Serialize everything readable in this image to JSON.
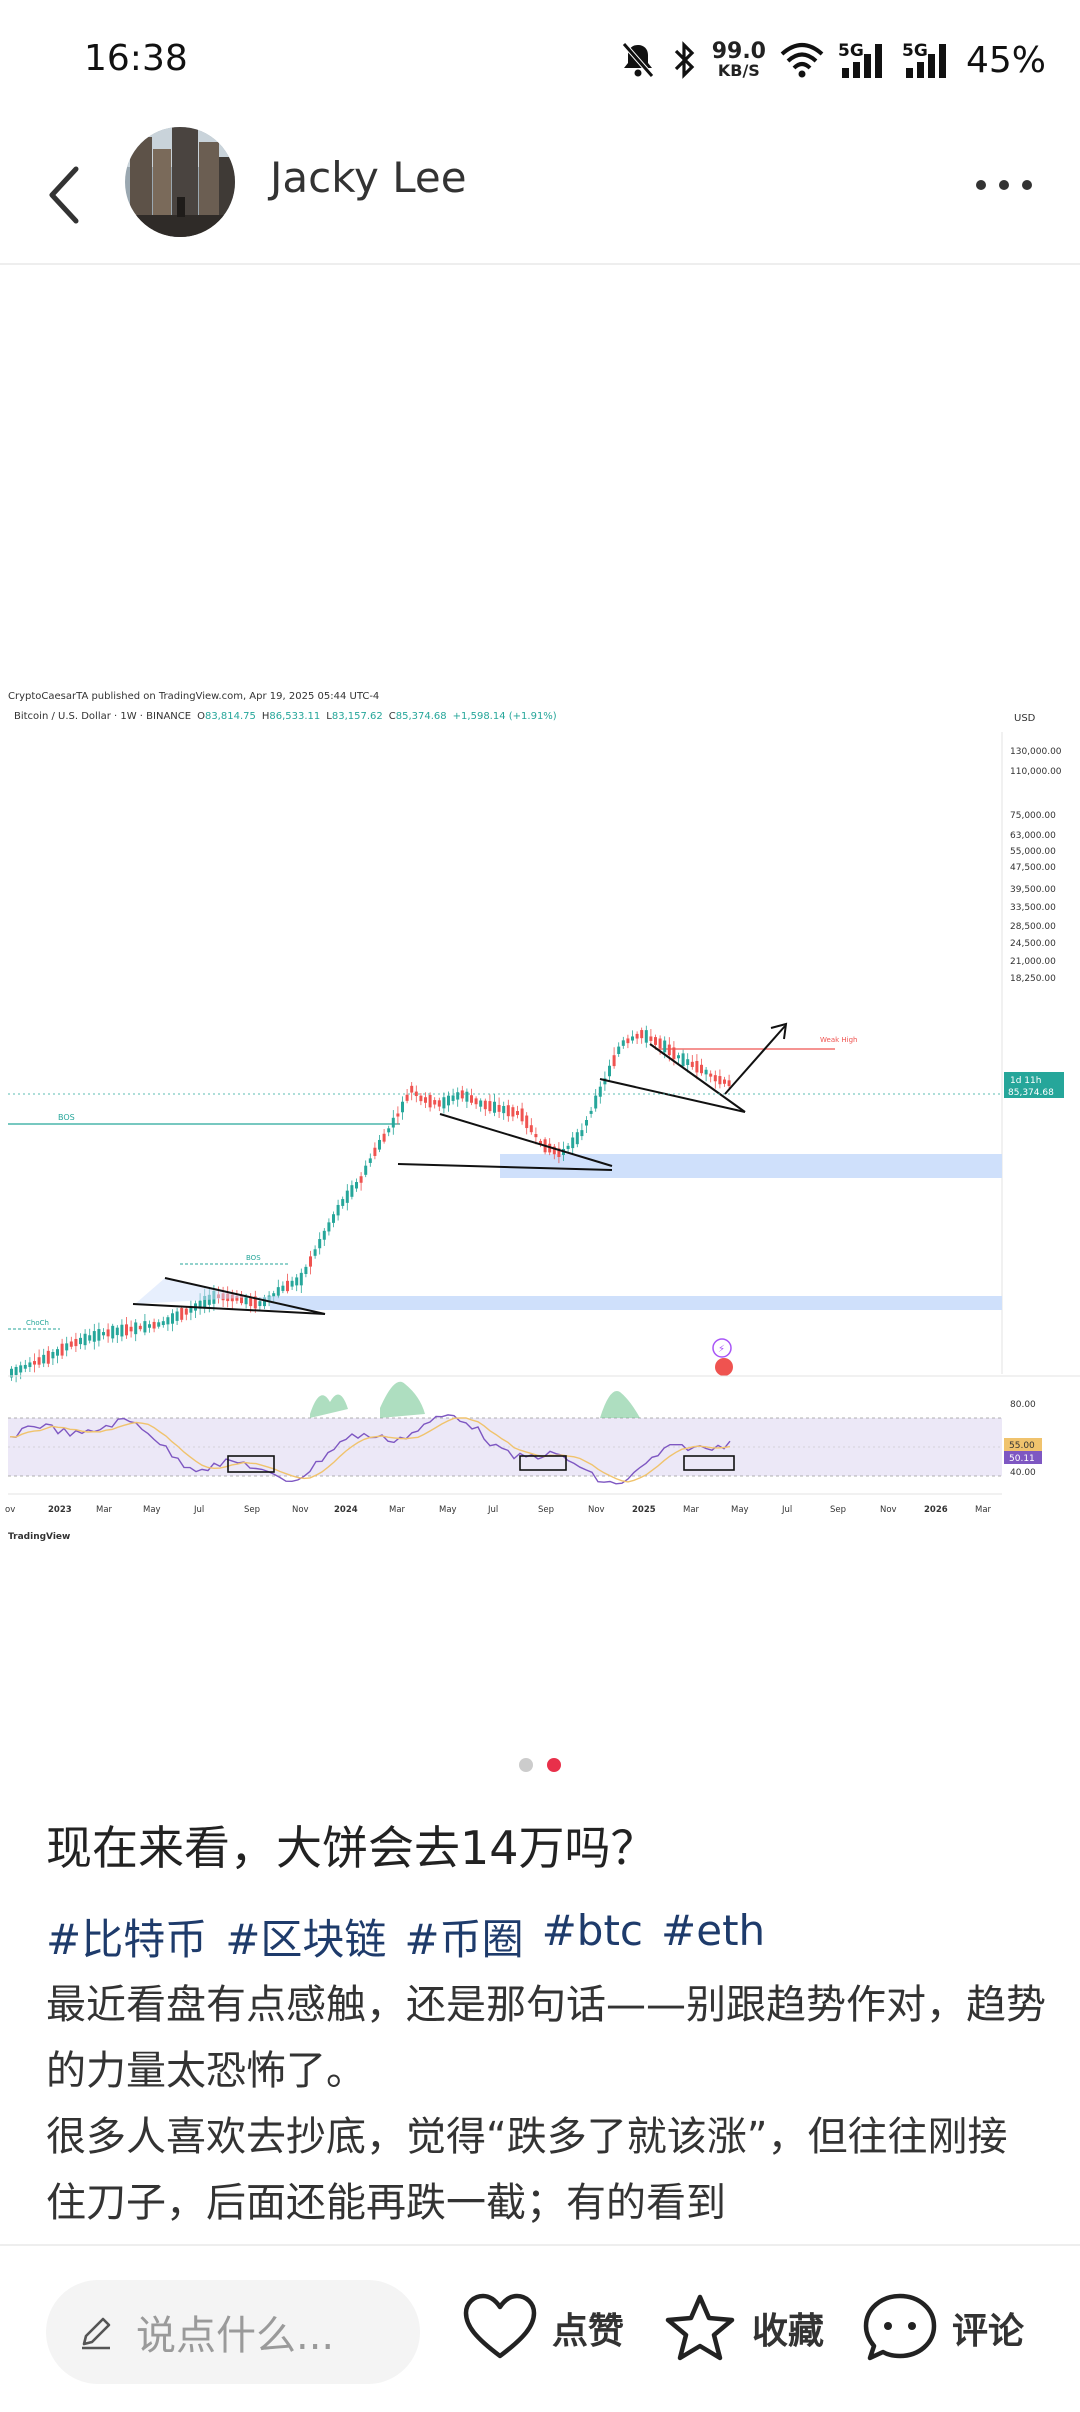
{
  "status_bar": {
    "time": "16:38",
    "net_speed_value": "99.0",
    "net_speed_unit": "KB/S",
    "signal1": "5G",
    "signal2": "5G",
    "battery": "45%"
  },
  "header": {
    "author": "Jacky Lee"
  },
  "chart": {
    "published": "CryptoCaesarTA published on TradingView.com, Apr 19, 2025 05:44 UTC-4",
    "symbol_prefix": "Bitcoin / U.S. Dollar · 1W · BINANCE",
    "ohlc_o_label": "O",
    "ohlc_o": "83,814.75",
    "ohlc_h_label": "H",
    "ohlc_h": "86,533.11",
    "ohlc_l_label": "L",
    "ohlc_l": "83,157.62",
    "ohlc_c_label": "C",
    "ohlc_c": "85,374.68",
    "ohlc_change": "+1,598.14 (+1.91%)",
    "currency": "USD",
    "price_ticks": [
      "130,000.00",
      "110,000.00",
      "75,000.00",
      "63,000.00",
      "55,000.00",
      "47,500.00",
      "39,500.00",
      "33,500.00",
      "28,500.00",
      "24,500.00",
      "21,000.00",
      "18,250.00"
    ],
    "price_tag_time": "1d 11h",
    "price_tag_value": "85,374.68",
    "rsi_ticks": [
      "80.00",
      "40.00"
    ],
    "rsi_tag1": "55.00",
    "rsi_tag2": "50.11",
    "x_ticks": [
      "ov",
      "2023",
      "Mar",
      "May",
      "Jul",
      "Sep",
      "Nov",
      "2024",
      "Mar",
      "May",
      "Jul",
      "Sep",
      "Nov",
      "2025",
      "Mar",
      "May",
      "Jul",
      "Sep",
      "Nov",
      "2026",
      "Mar"
    ],
    "bos_label1": "BOS",
    "bos_label2": "BOS",
    "choch_label": "ChoCh",
    "weak_high": "Weak High",
    "footer": "TradingView",
    "colors": {
      "up": "#26a69a",
      "down": "#ef5350",
      "zone": "#cfe0fb",
      "rsi_band": "#ece8f7",
      "rsi_line": "#7e57c2",
      "rsi_ma": "#f0c36d"
    }
  },
  "carousel": {
    "count": 2,
    "active": 1
  },
  "post": {
    "title": "现在来看，大饼会去14万吗？",
    "tags": [
      "#比特币",
      "#区块链",
      "#币圈",
      "#btc",
      "#eth"
    ],
    "paragraphs": [
      "最近看盘有点感触，还是那句话——别跟趋势作对，趋势的力量太恐怖了。",
      "很多人喜欢去抄底，觉得“跌多了就该涨”，但往往刚接住刀子，后面还能再跌一截；有的看到"
    ]
  },
  "bottom_bar": {
    "comment_placeholder": "说点什么...",
    "like_label": "点赞",
    "favorite_label": "收藏",
    "comment_label": "评论"
  }
}
